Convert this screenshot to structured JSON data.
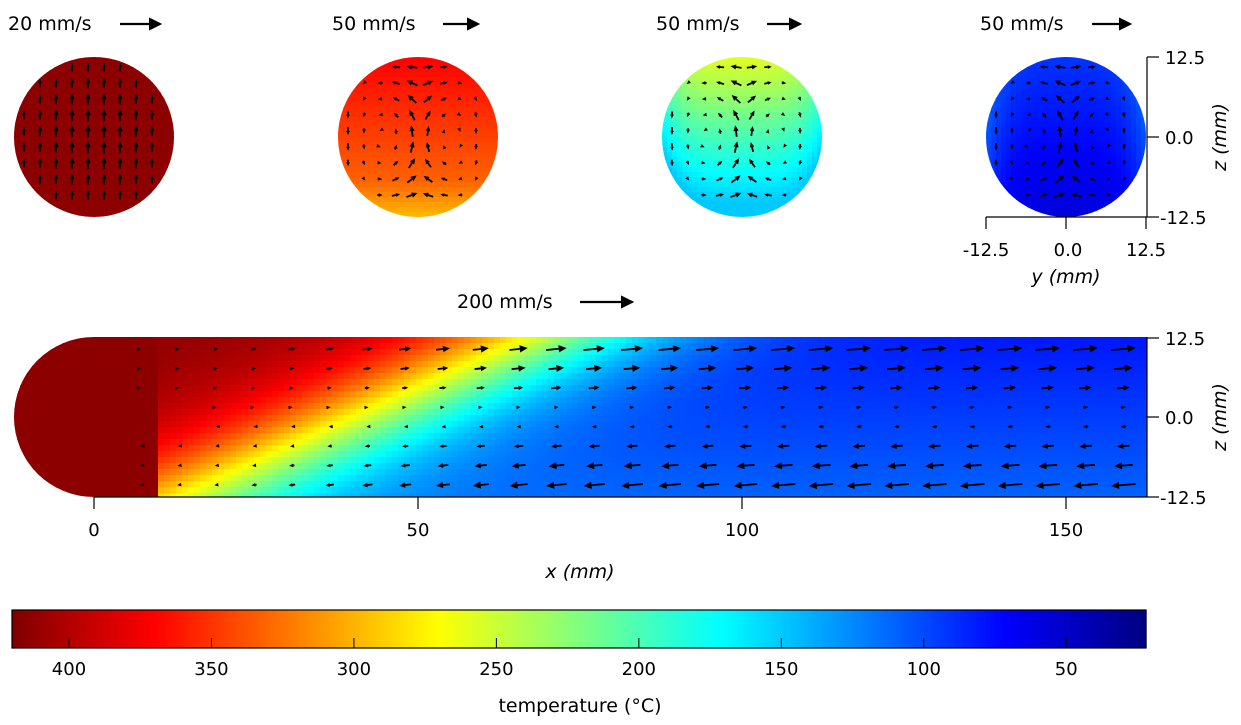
{
  "chart_data": {
    "type": "heatmap",
    "colorbar": {
      "label": "temperature (°C)",
      "range": [
        22,
        420
      ],
      "ticks": [
        400,
        350,
        300,
        250,
        200,
        150,
        100,
        50
      ],
      "colormap": "jet (reversed: high = dark red, low = dark blue)"
    },
    "cross_sections": [
      {
        "speed_label": "20 mm/s",
        "speed": 20,
        "uniform_temperature": 415,
        "flow": "upward"
      },
      {
        "speed_label": "50 mm/s",
        "speed": 50,
        "temperature_range": [
          300,
          370
        ],
        "flow": "two counter-rotating cells"
      },
      {
        "speed_label": "50 mm/s",
        "speed": 50,
        "temperature_range": [
          150,
          260
        ],
        "flow": "two counter-rotating cells"
      },
      {
        "speed_label": "50 mm/s",
        "speed": 50,
        "temperature_range": [
          50,
          120
        ],
        "flow": "two counter-rotating cells"
      }
    ],
    "cross_section_axes": {
      "y_label": "y (mm)",
      "y_ticks": [
        "-12.5",
        "0.0",
        "12.5"
      ],
      "z_label": "z (mm)",
      "z_ticks": [
        "12.5",
        "0.0",
        "-12.5"
      ],
      "range": [
        -12.5,
        12.5
      ]
    },
    "longitudinal": {
      "speed_label": "200 mm/s",
      "speed": 200,
      "x_label": "x (mm)",
      "x_ticks": [
        "0",
        "50",
        "100",
        "150"
      ],
      "x_range": [
        -12.5,
        163
      ],
      "z_label": "z (mm)",
      "z_ticks": [
        "12.5",
        "0.0",
        "-12.5"
      ],
      "z_range": [
        -12.5,
        12.5
      ],
      "flow": "forward (+x) in upper half, backward (-x) in lower half",
      "inlet_temperature": 415,
      "outlet_temperature_top": 80,
      "outlet_temperature_bottom": 110
    }
  }
}
